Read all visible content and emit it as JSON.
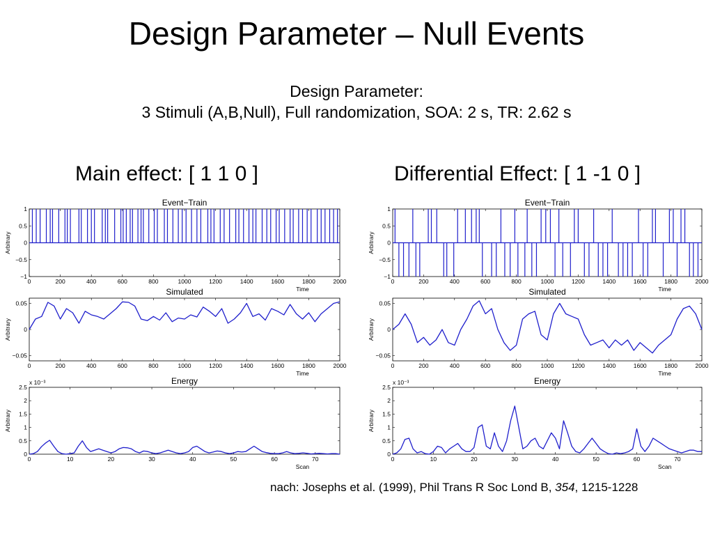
{
  "slide": {
    "title": "Design Parameter – Null Events",
    "subtitle_line1": "Design Parameter:",
    "subtitle_line2": "3 Stimuli (A,B,Null), Full randomization, SOA: 2 s, TR: 2.62 s",
    "main_effect_title": "Main effect: [ 1 1 0 ]",
    "diff_effect_title": "Differential Effect: [ 1 -1 0 ]",
    "citation_prefix": "nach: Josephs et al. (1999), Phil Trans R Soc Lond B, ",
    "citation_volume": "354",
    "citation_suffix": ", 1215-1228"
  },
  "chart_data": [
    {
      "id": "main-event-train",
      "type": "event-train",
      "title": "Event−Train",
      "xlabel": "Time",
      "ylabel": "Arbitrary",
      "xlim": [
        0,
        2000
      ],
      "ylim": [
        -1,
        1
      ],
      "xticks": [
        0,
        200,
        400,
        600,
        800,
        1000,
        1200,
        1400,
        1600,
        1800,
        2000
      ],
      "yticks": [
        -1,
        -0.5,
        0,
        0.5,
        1
      ],
      "ytick_labels": [
        "−1",
        "−0.5",
        "0",
        "0.5",
        "1"
      ],
      "color": "#1f1fcc",
      "events": [
        {
          "t": 20,
          "v": 1
        },
        {
          "t": 45,
          "v": 1
        },
        {
          "t": 70,
          "v": 1
        },
        {
          "t": 110,
          "v": 1
        },
        {
          "t": 135,
          "v": 1
        },
        {
          "t": 150,
          "v": 1
        },
        {
          "t": 190,
          "v": 1
        },
        {
          "t": 230,
          "v": 1
        },
        {
          "t": 245,
          "v": 1
        },
        {
          "t": 265,
          "v": 1
        },
        {
          "t": 320,
          "v": 1
        },
        {
          "t": 335,
          "v": 1
        },
        {
          "t": 375,
          "v": 1
        },
        {
          "t": 400,
          "v": 1
        },
        {
          "t": 420,
          "v": 1
        },
        {
          "t": 470,
          "v": 1
        },
        {
          "t": 490,
          "v": 1
        },
        {
          "t": 505,
          "v": 1
        },
        {
          "t": 550,
          "v": 1
        },
        {
          "t": 590,
          "v": 1
        },
        {
          "t": 605,
          "v": 1
        },
        {
          "t": 625,
          "v": 1
        },
        {
          "t": 650,
          "v": 1
        },
        {
          "t": 665,
          "v": 1
        },
        {
          "t": 700,
          "v": 1
        },
        {
          "t": 720,
          "v": 1
        },
        {
          "t": 735,
          "v": 1
        },
        {
          "t": 770,
          "v": 1
        },
        {
          "t": 805,
          "v": 1
        },
        {
          "t": 825,
          "v": 1
        },
        {
          "t": 870,
          "v": 1
        },
        {
          "t": 890,
          "v": 1
        },
        {
          "t": 925,
          "v": 1
        },
        {
          "t": 960,
          "v": 1
        },
        {
          "t": 985,
          "v": 1
        },
        {
          "t": 1010,
          "v": 1
        },
        {
          "t": 1045,
          "v": 1
        },
        {
          "t": 1080,
          "v": 1
        },
        {
          "t": 1105,
          "v": 1
        },
        {
          "t": 1150,
          "v": 1
        },
        {
          "t": 1170,
          "v": 1
        },
        {
          "t": 1190,
          "v": 1
        },
        {
          "t": 1230,
          "v": 1
        },
        {
          "t": 1255,
          "v": 1
        },
        {
          "t": 1290,
          "v": 1
        },
        {
          "t": 1330,
          "v": 1
        },
        {
          "t": 1350,
          "v": 1
        },
        {
          "t": 1380,
          "v": 1
        },
        {
          "t": 1415,
          "v": 1
        },
        {
          "t": 1440,
          "v": 1
        },
        {
          "t": 1460,
          "v": 1
        },
        {
          "t": 1500,
          "v": 1
        },
        {
          "t": 1530,
          "v": 1
        },
        {
          "t": 1555,
          "v": 1
        },
        {
          "t": 1590,
          "v": 1
        },
        {
          "t": 1610,
          "v": 1
        },
        {
          "t": 1645,
          "v": 1
        },
        {
          "t": 1680,
          "v": 1
        },
        {
          "t": 1700,
          "v": 1
        },
        {
          "t": 1735,
          "v": 1
        },
        {
          "t": 1760,
          "v": 1
        },
        {
          "t": 1790,
          "v": 1
        },
        {
          "t": 1815,
          "v": 1
        },
        {
          "t": 1855,
          "v": 1
        },
        {
          "t": 1880,
          "v": 1
        },
        {
          "t": 1905,
          "v": 1
        },
        {
          "t": 1935,
          "v": 1
        },
        {
          "t": 1960,
          "v": 1
        },
        {
          "t": 1985,
          "v": 1
        }
      ]
    },
    {
      "id": "main-simulated",
      "type": "line",
      "title": "Simulated",
      "xlabel": "Time",
      "ylabel": "Arbitrary",
      "xlim": [
        0,
        2000
      ],
      "ylim": [
        -0.06,
        0.06
      ],
      "xticks": [
        0,
        200,
        400,
        600,
        800,
        1000,
        1200,
        1400,
        1600,
        1800,
        2000
      ],
      "yticks": [
        -0.05,
        0,
        0.05
      ],
      "ytick_labels": [
        "−0.05",
        "0",
        "0.05"
      ],
      "color": "#1f1fcc",
      "x": [
        0,
        40,
        80,
        120,
        160,
        200,
        240,
        280,
        320,
        360,
        400,
        440,
        480,
        520,
        560,
        600,
        640,
        680,
        720,
        760,
        800,
        840,
        880,
        920,
        960,
        1000,
        1040,
        1080,
        1120,
        1160,
        1200,
        1240,
        1280,
        1320,
        1360,
        1400,
        1440,
        1480,
        1520,
        1560,
        1600,
        1640,
        1680,
        1720,
        1760,
        1800,
        1840,
        1880,
        1920,
        1960,
        2000
      ],
      "y": [
        0.0,
        0.02,
        0.025,
        0.052,
        0.045,
        0.02,
        0.04,
        0.032,
        0.012,
        0.035,
        0.028,
        0.025,
        0.02,
        0.03,
        0.04,
        0.053,
        0.052,
        0.045,
        0.02,
        0.017,
        0.025,
        0.018,
        0.032,
        0.015,
        0.022,
        0.02,
        0.028,
        0.024,
        0.043,
        0.035,
        0.025,
        0.04,
        0.012,
        0.02,
        0.032,
        0.05,
        0.025,
        0.03,
        0.018,
        0.04,
        0.035,
        0.028,
        0.048,
        0.03,
        0.02,
        0.032,
        0.015,
        0.03,
        0.04,
        0.05,
        0.053
      ]
    },
    {
      "id": "main-energy",
      "type": "line",
      "title": "Energy",
      "xlabel": "Scan",
      "ylabel": "Arbitrary",
      "exponent_label": "x 10⁻³",
      "xlim": [
        0,
        76
      ],
      "ylim": [
        0,
        2.5
      ],
      "xticks": [
        0,
        10,
        20,
        30,
        40,
        50,
        60,
        70
      ],
      "yticks": [
        0,
        0.5,
        1,
        1.5,
        2,
        2.5
      ],
      "ytick_labels": [
        "0",
        "0.5",
        "1",
        "1.5",
        "2",
        "2.5"
      ],
      "color": "#1f1fcc",
      "x": [
        0,
        1,
        2,
        3,
        4,
        5,
        6,
        7,
        8,
        9,
        10,
        11,
        12,
        13,
        14,
        15,
        16,
        17,
        18,
        19,
        20,
        21,
        22,
        23,
        24,
        25,
        26,
        27,
        28,
        29,
        30,
        31,
        32,
        33,
        34,
        35,
        36,
        37,
        38,
        39,
        40,
        41,
        42,
        43,
        44,
        45,
        46,
        47,
        48,
        49,
        50,
        51,
        52,
        53,
        54,
        55,
        56,
        57,
        58,
        59,
        60,
        61,
        62,
        63,
        64,
        65,
        66,
        67,
        68,
        69,
        70,
        71,
        72,
        73,
        74,
        75,
        76
      ],
      "y": [
        0,
        0.02,
        0.1,
        0.28,
        0.42,
        0.52,
        0.3,
        0.1,
        0.02,
        0.0,
        0.02,
        0.05,
        0.3,
        0.5,
        0.25,
        0.1,
        0.15,
        0.2,
        0.15,
        0.1,
        0.05,
        0.1,
        0.2,
        0.25,
        0.24,
        0.2,
        0.1,
        0.05,
        0.12,
        0.1,
        0.05,
        0.02,
        0.05,
        0.1,
        0.15,
        0.1,
        0.05,
        0.02,
        0.05,
        0.1,
        0.25,
        0.3,
        0.2,
        0.1,
        0.05,
        0.08,
        0.12,
        0.1,
        0.05,
        0.02,
        0.05,
        0.1,
        0.08,
        0.1,
        0.2,
        0.3,
        0.2,
        0.1,
        0.06,
        0.03,
        0.02,
        0.02,
        0.05,
        0.1,
        0.05,
        0.02,
        0.03,
        0.05,
        0.03,
        0.01,
        0.02,
        0.03,
        0.02,
        0.01,
        0.02,
        0.02,
        0.0
      ]
    },
    {
      "id": "diff-event-train",
      "type": "event-train",
      "title": "Event−Train",
      "xlabel": "Time",
      "ylabel": "Arbitrary",
      "xlim": [
        0,
        2000
      ],
      "ylim": [
        -1,
        1
      ],
      "xticks": [
        0,
        200,
        400,
        600,
        800,
        1000,
        1200,
        1400,
        1600,
        1800,
        2000
      ],
      "yticks": [
        -1,
        -0.5,
        0,
        0.5,
        1
      ],
      "ytick_labels": [
        "−1",
        "−0.5",
        "0",
        "0.5",
        "1"
      ],
      "color": "#1f1fcc",
      "events": [
        {
          "t": 15,
          "v": 1
        },
        {
          "t": 40,
          "v": -1
        },
        {
          "t": 70,
          "v": -1
        },
        {
          "t": 105,
          "v": -1
        },
        {
          "t": 130,
          "v": 1
        },
        {
          "t": 150,
          "v": -1
        },
        {
          "t": 175,
          "v": -1
        },
        {
          "t": 230,
          "v": 1
        },
        {
          "t": 250,
          "v": 1
        },
        {
          "t": 285,
          "v": 1
        },
        {
          "t": 330,
          "v": -1
        },
        {
          "t": 350,
          "v": -1
        },
        {
          "t": 395,
          "v": -1
        },
        {
          "t": 420,
          "v": 1
        },
        {
          "t": 470,
          "v": 1
        },
        {
          "t": 510,
          "v": 1
        },
        {
          "t": 540,
          "v": 1
        },
        {
          "t": 560,
          "v": 1
        },
        {
          "t": 580,
          "v": -1
        },
        {
          "t": 640,
          "v": -1
        },
        {
          "t": 670,
          "v": -1
        },
        {
          "t": 700,
          "v": 1
        },
        {
          "t": 725,
          "v": -1
        },
        {
          "t": 760,
          "v": -1
        },
        {
          "t": 790,
          "v": 1
        },
        {
          "t": 810,
          "v": -1
        },
        {
          "t": 855,
          "v": -1
        },
        {
          "t": 870,
          "v": 1
        },
        {
          "t": 900,
          "v": -1
        },
        {
          "t": 930,
          "v": -1
        },
        {
          "t": 960,
          "v": 1
        },
        {
          "t": 990,
          "v": 1
        },
        {
          "t": 1020,
          "v": 1
        },
        {
          "t": 1050,
          "v": -1
        },
        {
          "t": 1075,
          "v": 1
        },
        {
          "t": 1100,
          "v": -1
        },
        {
          "t": 1150,
          "v": -1
        },
        {
          "t": 1175,
          "v": 1
        },
        {
          "t": 1200,
          "v": 1
        },
        {
          "t": 1240,
          "v": -1
        },
        {
          "t": 1270,
          "v": -1
        },
        {
          "t": 1300,
          "v": 1
        },
        {
          "t": 1330,
          "v": -1
        },
        {
          "t": 1360,
          "v": -1
        },
        {
          "t": 1390,
          "v": -1
        },
        {
          "t": 1420,
          "v": 1
        },
        {
          "t": 1460,
          "v": -1
        },
        {
          "t": 1490,
          "v": -1
        },
        {
          "t": 1520,
          "v": -1
        },
        {
          "t": 1550,
          "v": -1
        },
        {
          "t": 1590,
          "v": 1
        },
        {
          "t": 1620,
          "v": -1
        },
        {
          "t": 1650,
          "v": -1
        },
        {
          "t": 1680,
          "v": 1
        },
        {
          "t": 1700,
          "v": 1
        },
        {
          "t": 1750,
          "v": -1
        },
        {
          "t": 1790,
          "v": 1
        },
        {
          "t": 1815,
          "v": 1
        },
        {
          "t": 1840,
          "v": -1
        },
        {
          "t": 1865,
          "v": 1
        },
        {
          "t": 1890,
          "v": 1
        },
        {
          "t": 1920,
          "v": -1
        },
        {
          "t": 1945,
          "v": -1
        },
        {
          "t": 1975,
          "v": -1
        }
      ]
    },
    {
      "id": "diff-simulated",
      "type": "line",
      "title": "Simulated",
      "xlabel": "Time",
      "ylabel": "Arbitrary",
      "xlim": [
        0,
        2000
      ],
      "ylim": [
        -0.06,
        0.06
      ],
      "xticks": [
        0,
        200,
        400,
        600,
        800,
        1000,
        1200,
        1400,
        1600,
        1800,
        2000
      ],
      "yticks": [
        -0.05,
        0,
        0.05
      ],
      "ytick_labels": [
        "−0.05",
        "0",
        "0.05"
      ],
      "color": "#1f1fcc",
      "x": [
        0,
        40,
        80,
        120,
        160,
        200,
        240,
        280,
        320,
        360,
        400,
        440,
        480,
        520,
        560,
        600,
        640,
        680,
        720,
        760,
        800,
        840,
        880,
        920,
        960,
        1000,
        1040,
        1080,
        1120,
        1160,
        1200,
        1240,
        1280,
        1320,
        1360,
        1400,
        1440,
        1480,
        1520,
        1560,
        1600,
        1640,
        1680,
        1720,
        1760,
        1800,
        1840,
        1880,
        1920,
        1960,
        2000
      ],
      "y": [
        0.0,
        0.01,
        0.03,
        0.01,
        -0.025,
        -0.015,
        -0.03,
        -0.02,
        0.0,
        -0.025,
        -0.03,
        0.0,
        0.02,
        0.045,
        0.055,
        0.03,
        0.04,
        0.0,
        -0.025,
        -0.04,
        -0.03,
        0.02,
        0.03,
        0.035,
        -0.01,
        -0.02,
        0.03,
        0.05,
        0.03,
        0.025,
        0.02,
        -0.01,
        -0.03,
        -0.025,
        -0.02,
        -0.035,
        -0.02,
        -0.03,
        -0.02,
        -0.04,
        -0.025,
        -0.035,
        -0.045,
        -0.03,
        -0.02,
        -0.01,
        0.02,
        0.04,
        0.045,
        0.03,
        0.0
      ]
    },
    {
      "id": "diff-energy",
      "type": "line",
      "title": "Energy",
      "xlabel": "Scan",
      "ylabel": "Arbitrary",
      "exponent_label": "x 10⁻³",
      "xlim": [
        0,
        76
      ],
      "ylim": [
        0,
        2.5
      ],
      "xticks": [
        0,
        10,
        20,
        30,
        40,
        50,
        60,
        70
      ],
      "yticks": [
        0,
        0.5,
        1,
        1.5,
        2,
        2.5
      ],
      "ytick_labels": [
        "0",
        "0.5",
        "1",
        "1.5",
        "2",
        "2.5"
      ],
      "color": "#1f1fcc",
      "x": [
        0,
        1,
        2,
        3,
        4,
        5,
        6,
        7,
        8,
        9,
        10,
        11,
        12,
        13,
        14,
        15,
        16,
        17,
        18,
        19,
        20,
        21,
        22,
        23,
        24,
        25,
        26,
        27,
        28,
        29,
        30,
        31,
        32,
        33,
        34,
        35,
        36,
        37,
        38,
        39,
        40,
        41,
        42,
        43,
        44,
        45,
        46,
        47,
        48,
        49,
        50,
        51,
        52,
        53,
        54,
        55,
        56,
        57,
        58,
        59,
        60,
        61,
        62,
        63,
        64,
        65,
        66,
        67,
        68,
        69,
        70,
        71,
        72,
        73,
        74,
        75,
        76
      ],
      "y": [
        0,
        0.05,
        0.2,
        0.55,
        0.6,
        0.2,
        0.05,
        0.1,
        0.02,
        0.0,
        0.1,
        0.3,
        0.25,
        0.05,
        0.2,
        0.3,
        0.4,
        0.2,
        0.1,
        0.1,
        0.25,
        1.0,
        1.1,
        0.3,
        0.2,
        0.8,
        0.3,
        0.1,
        0.5,
        1.25,
        1.8,
        1.0,
        0.2,
        0.3,
        0.5,
        0.6,
        0.3,
        0.2,
        0.5,
        0.8,
        0.6,
        0.2,
        1.25,
        0.8,
        0.3,
        0.1,
        0.05,
        0.2,
        0.4,
        0.6,
        0.4,
        0.2,
        0.1,
        0.02,
        0.0,
        0.05,
        0.02,
        0.05,
        0.1,
        0.2,
        0.95,
        0.3,
        0.1,
        0.3,
        0.6,
        0.5,
        0.4,
        0.3,
        0.2,
        0.15,
        0.1,
        0.05,
        0.1,
        0.15,
        0.15,
        0.1,
        0.1
      ]
    }
  ]
}
